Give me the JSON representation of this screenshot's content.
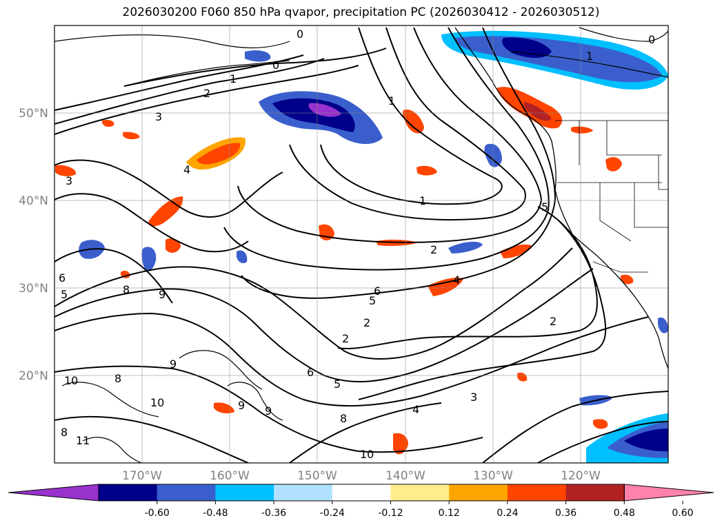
{
  "title": "2026030200 F060 850 hPa qvapor, precipitation PC (2026030412 - 2026030512)",
  "map": {
    "lon_range": [
      -180,
      -110
    ],
    "lat_range": [
      10,
      60
    ],
    "lon_ticks": [
      {
        "lon": -170,
        "label": "170°W"
      },
      {
        "lon": -160,
        "label": "160°W"
      },
      {
        "lon": -150,
        "label": "150°W"
      },
      {
        "lon": -140,
        "label": "140°W"
      },
      {
        "lon": -130,
        "label": "130°W"
      },
      {
        "lon": -120,
        "label": "120°W"
      }
    ],
    "lat_ticks": [
      {
        "lat": 50,
        "label": "50°N"
      },
      {
        "lat": 40,
        "label": "40°N"
      },
      {
        "lat": 30,
        "label": "30°N"
      },
      {
        "lat": 20,
        "label": "20°N"
      }
    ],
    "grid": true,
    "contour_labels": [
      "0",
      "0",
      "0",
      "1",
      "1",
      "1",
      "1",
      "2",
      "2",
      "2",
      "2",
      "2",
      "3",
      "3",
      "3",
      "4",
      "4",
      "4",
      "5",
      "5",
      "5",
      "5",
      "6",
      "6",
      "6",
      "8",
      "8",
      "8",
      "8",
      "9",
      "9",
      "9",
      "9",
      "10",
      "10",
      "11",
      "10"
    ]
  },
  "colorbar": {
    "ticks": [
      "-0.60",
      "-0.48",
      "-0.36",
      "-0.24",
      "-0.12",
      "0.12",
      "0.24",
      "0.36",
      "0.48",
      "0.60"
    ],
    "colors": [
      "#9932CC",
      "#00008B",
      "#3A5FCD",
      "#00BFFF",
      "#B0E2FF",
      "#FFFFFF",
      "#FFEC8B",
      "#FFA500",
      "#FF4500",
      "#B22222",
      "#FF82AB"
    ],
    "extend": "both"
  }
}
